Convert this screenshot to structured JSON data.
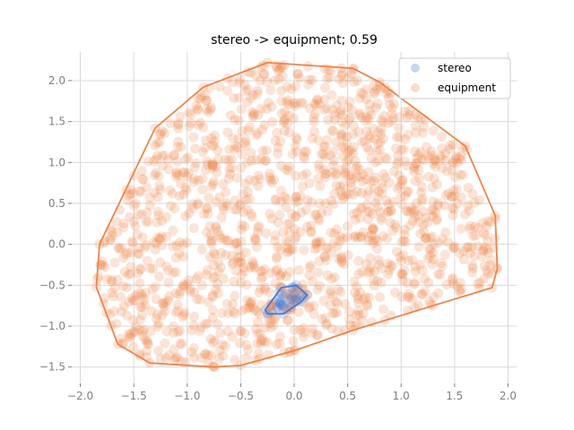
{
  "chart_data": {
    "type": "scatter",
    "title": "stereo -> equipment; 0.59",
    "xlabel": "",
    "ylabel": "",
    "xlim": [
      -2.08,
      2.08
    ],
    "ylim": [
      -1.7,
      2.35
    ],
    "xticks": [
      -2.0,
      -1.5,
      -1.0,
      -0.5,
      0.0,
      0.5,
      1.0,
      1.5,
      2.0
    ],
    "xtick_labels": [
      "−2.0",
      "−1.5",
      "−1.0",
      "−0.5",
      "0.0",
      "0.5",
      "1.0",
      "1.5",
      "2.0"
    ],
    "yticks": [
      -1.5,
      -1.0,
      -0.5,
      0.0,
      0.5,
      1.0,
      1.5,
      2.0
    ],
    "ytick_labels": [
      "−1.5",
      "−1.0",
      "−0.5",
      "0.0",
      "0.5",
      "1.0",
      "1.5",
      "2.0"
    ],
    "grid": true,
    "legend_position": "top-right",
    "series": [
      {
        "name": "stereo",
        "color": "#4878d0",
        "hull": [
          [
            -0.25,
            -0.85
          ],
          [
            -0.1,
            -0.85
          ],
          [
            0.07,
            -0.7
          ],
          [
            0.12,
            -0.62
          ],
          [
            0.02,
            -0.5
          ],
          [
            -0.12,
            -0.53
          ],
          [
            -0.27,
            -0.8
          ]
        ]
      },
      {
        "name": "equipment",
        "color": "#ee854a",
        "hull": [
          [
            -1.85,
            -0.52
          ],
          [
            -1.82,
            0.0
          ],
          [
            -1.3,
            1.42
          ],
          [
            -0.85,
            1.92
          ],
          [
            -0.25,
            2.22
          ],
          [
            0.55,
            2.15
          ],
          [
            0.8,
            1.98
          ],
          [
            1.6,
            1.2
          ],
          [
            1.88,
            0.35
          ],
          [
            1.9,
            -0.3
          ],
          [
            1.85,
            -0.53
          ],
          [
            1.3,
            -0.75
          ],
          [
            0.55,
            -1.05
          ],
          [
            0.0,
            -1.3
          ],
          [
            -0.5,
            -1.48
          ],
          [
            -0.75,
            -1.5
          ],
          [
            -1.35,
            -1.45
          ],
          [
            -1.65,
            -1.22
          ]
        ]
      }
    ]
  }
}
